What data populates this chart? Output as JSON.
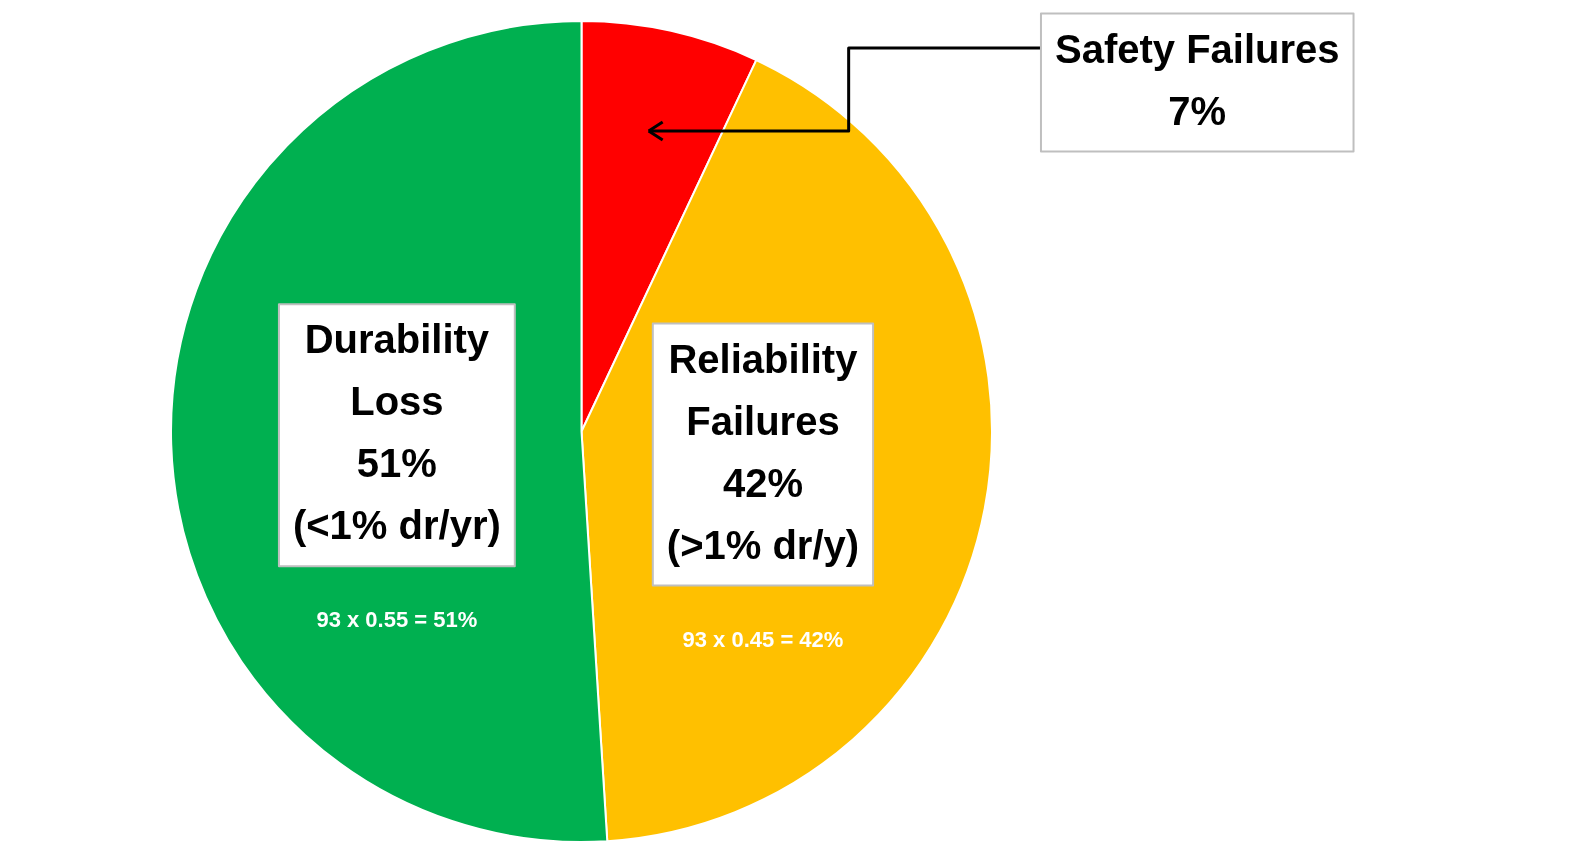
{
  "chart_data": {
    "type": "pie",
    "categories": [
      "Safety Failures",
      "Reliability Failures",
      "Durability Loss"
    ],
    "values": [
      7,
      42,
      51
    ],
    "colors": [
      "#ff0000",
      "#ffc000",
      "#00b050"
    ],
    "value_labels": [
      "7%",
      "42%",
      "51%"
    ],
    "annotations": [
      {
        "text": "(>1% dr/y)",
        "x": "Reliability Failures"
      },
      {
        "text": "(<1% dr/yr)",
        "x": "Durability Loss"
      },
      {
        "text": "93 x 0.45 = 42%",
        "x": "Reliability Failures"
      },
      {
        "text": "93 x 0.55 = 51%",
        "x": "Durability Loss"
      }
    ],
    "legend": false
  }
}
